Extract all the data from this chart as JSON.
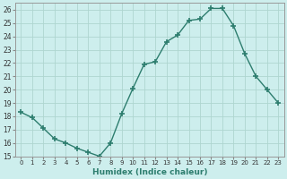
{
  "x": [
    0,
    1,
    2,
    3,
    4,
    5,
    6,
    7,
    8,
    9,
    10,
    11,
    12,
    13,
    14,
    15,
    16,
    17,
    18,
    19,
    20,
    21,
    22,
    23
  ],
  "y": [
    18.3,
    17.9,
    17.1,
    16.3,
    16.0,
    15.6,
    15.3,
    15.0,
    16.0,
    18.2,
    20.1,
    21.9,
    22.1,
    23.6,
    24.1,
    25.2,
    25.3,
    26.1,
    26.1,
    24.8,
    22.7,
    21.0,
    20.0,
    19.0
  ],
  "line_color": "#2d7d6e",
  "marker": "+",
  "marker_size": 4,
  "marker_lw": 1.2,
  "line_width": 1.0,
  "bg_color": "#cdeeed",
  "grid_color": "#aed6d0",
  "xlabel": "Humidex (Indice chaleur)",
  "xlim": [
    -0.5,
    23.5
  ],
  "ylim": [
    15,
    26.5
  ],
  "yticks": [
    15,
    16,
    17,
    18,
    19,
    20,
    21,
    22,
    23,
    24,
    25,
    26
  ],
  "xticks": [
    0,
    1,
    2,
    3,
    4,
    5,
    6,
    7,
    8,
    9,
    10,
    11,
    12,
    13,
    14,
    15,
    16,
    17,
    18,
    19,
    20,
    21,
    22,
    23
  ]
}
